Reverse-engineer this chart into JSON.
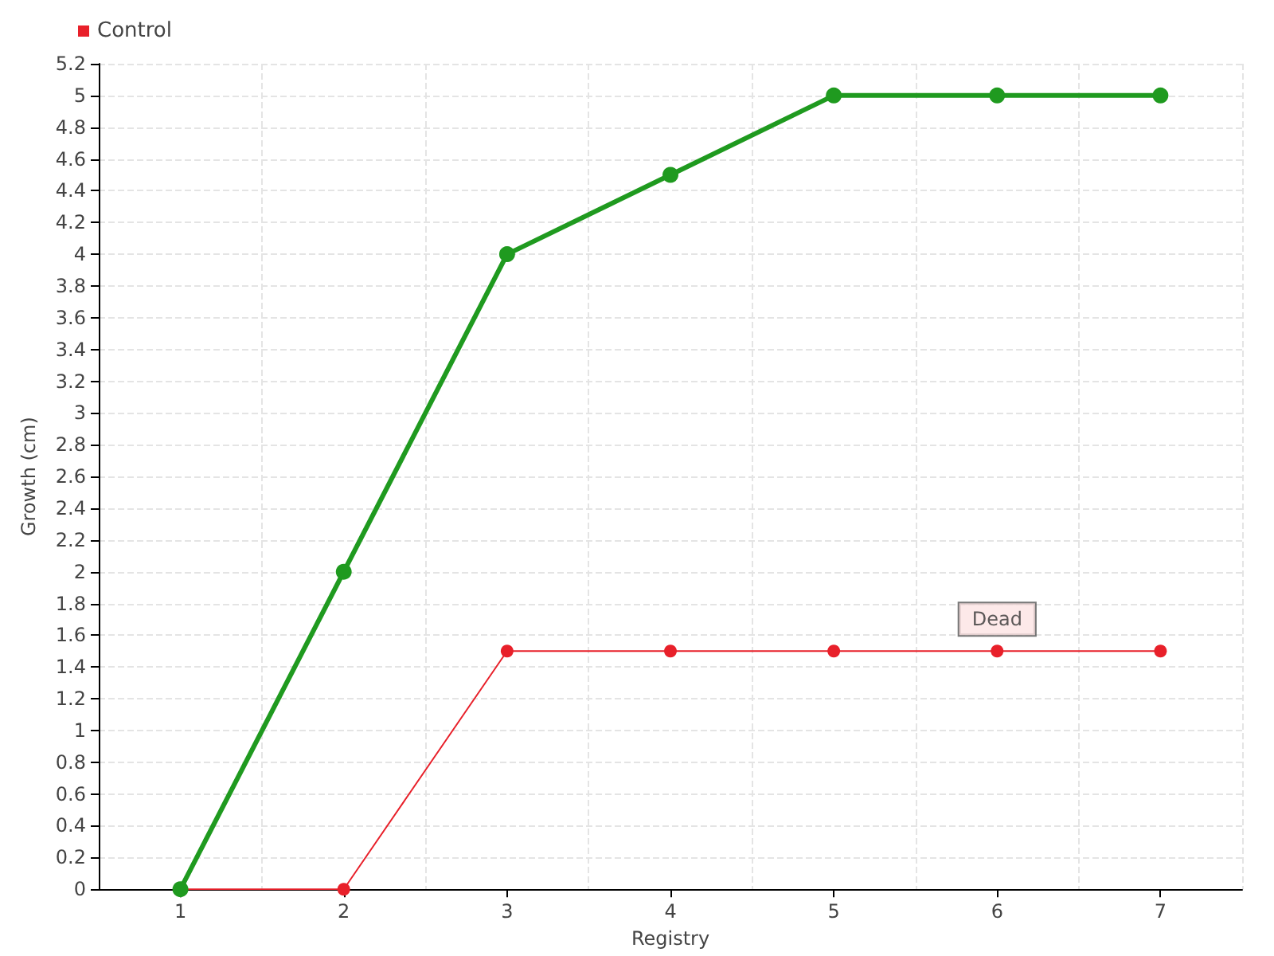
{
  "chart_data": {
    "type": "line",
    "xlabel": "Registry",
    "ylabel": "Growth (cm)",
    "categories": [
      "1",
      "2",
      "3",
      "4",
      "5",
      "6",
      "7"
    ],
    "series": [
      {
        "color": "#1f9a1f",
        "values": [
          0,
          2,
          4,
          4.5,
          5,
          5,
          5
        ]
      },
      {
        "name": "Control",
        "color": "#e8202a",
        "values": [
          0,
          0,
          1.5,
          1.5,
          1.5,
          1.5,
          1.5
        ]
      }
    ],
    "ylim": [
      0,
      5.2
    ],
    "yticks": [
      0,
      0.2,
      0.4,
      0.6,
      0.8,
      1,
      1.2,
      1.4,
      1.6,
      1.8,
      2,
      2.2,
      2.4,
      2.6,
      2.8,
      3,
      3.2,
      3.4,
      3.6,
      3.8,
      4,
      4.2,
      4.4,
      4.6,
      4.8,
      5,
      5.2
    ],
    "annotations": [
      {
        "text": "Dead",
        "x": "6",
        "y": 1.5
      }
    ],
    "grid": true,
    "legend": "top left",
    "marker": "circle",
    "line_style": "solid"
  }
}
